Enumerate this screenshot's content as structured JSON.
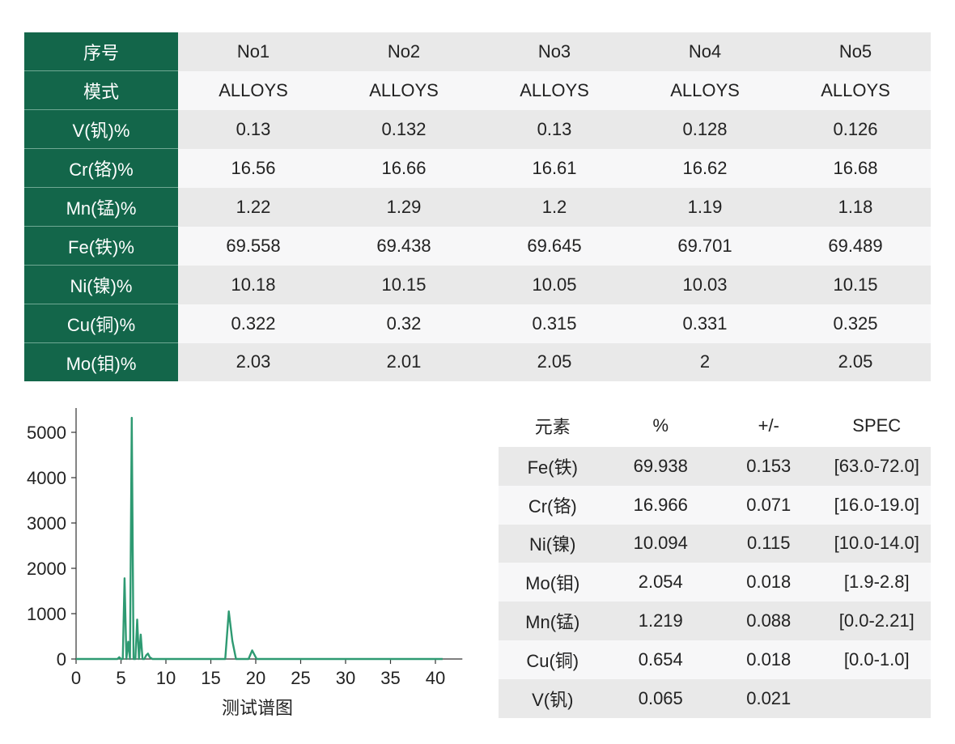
{
  "results_table": {
    "header_label": "序号",
    "samples": [
      "No1",
      "No2",
      "No3",
      "No4",
      "No5"
    ],
    "rows": [
      {
        "label": "模式",
        "values": [
          "ALLOYS",
          "ALLOYS",
          "ALLOYS",
          "ALLOYS",
          "ALLOYS"
        ]
      },
      {
        "label": "V(钒)%",
        "values": [
          "0.13",
          "0.132",
          "0.13",
          "0.128",
          "0.126"
        ]
      },
      {
        "label": "Cr(铬)%",
        "values": [
          "16.56",
          "16.66",
          "16.61",
          "16.62",
          "16.68"
        ]
      },
      {
        "label": "Mn(锰)%",
        "values": [
          "1.22",
          "1.29",
          "1.2",
          "1.19",
          "1.18"
        ]
      },
      {
        "label": "Fe(铁)%",
        "values": [
          "69.558",
          "69.438",
          "69.645",
          "69.701",
          "69.489"
        ]
      },
      {
        "label": "Ni(镍)%",
        "values": [
          "10.18",
          "10.15",
          "10.05",
          "10.03",
          "10.15"
        ]
      },
      {
        "label": "Cu(铜)%",
        "values": [
          "0.322",
          "0.32",
          "0.315",
          "0.331",
          "0.325"
        ]
      },
      {
        "label": "Mo(钼)%",
        "values": [
          "2.03",
          "2.01",
          "2.05",
          "2",
          "2.05"
        ]
      }
    ]
  },
  "chart_data": {
    "type": "line",
    "title": "",
    "xlabel": "测试谱图",
    "ylabel": "",
    "xlim": [
      0,
      43
    ],
    "ylim": [
      0,
      5300
    ],
    "xticks": [
      0,
      5,
      10,
      15,
      20,
      25,
      30,
      35,
      40
    ],
    "yticks": [
      0,
      1000,
      2000,
      3000,
      4000,
      5000
    ],
    "grid": false,
    "legend": "none",
    "color": "#2e9a72",
    "series": [
      {
        "x": [
          0,
          4.6,
          4.8,
          5.0,
          5.2,
          5.4,
          5.6,
          5.8,
          6.0,
          6.2,
          6.4,
          6.6,
          6.8,
          7.0,
          7.2,
          7.4,
          7.6,
          7.8,
          8.0,
          8.2,
          8.5,
          9.0,
          16.6,
          17.0,
          17.4,
          17.8,
          19.2,
          19.6,
          20.1,
          40.8
        ],
        "y": [
          0,
          0,
          40,
          0,
          0,
          1780,
          0,
          380,
          0,
          5320,
          0,
          0,
          870,
          0,
          540,
          0,
          0,
          80,
          120,
          40,
          0,
          0,
          0,
          1050,
          400,
          0,
          0,
          190,
          0,
          0
        ]
      }
    ]
  },
  "element_table": {
    "headers": [
      "元素",
      "%",
      "+/-",
      "SPEC"
    ],
    "rows": [
      [
        "Fe(铁)",
        "69.938",
        "0.153",
        "[63.0-72.0]"
      ],
      [
        "Cr(铬)",
        "16.966",
        "0.071",
        "[16.0-19.0]"
      ],
      [
        "Ni(镍)",
        "10.094",
        "0.115",
        "[10.0-14.0]"
      ],
      [
        "Mo(钼)",
        "2.054",
        "0.018",
        "[1.9-2.8]"
      ],
      [
        "Mn(锰)",
        "1.219",
        "0.088",
        "[0.0-2.21]"
      ],
      [
        "Cu(铜)",
        "0.654",
        "0.018",
        "[0.0-1.0]"
      ],
      [
        "V(钒)",
        "0.065",
        "0.021",
        ""
      ]
    ]
  },
  "colors": {
    "header_green": "#13664a",
    "row_gray": "#e9e9e9",
    "row_light": "#f7f7f8",
    "line_green": "#2e9a72"
  }
}
